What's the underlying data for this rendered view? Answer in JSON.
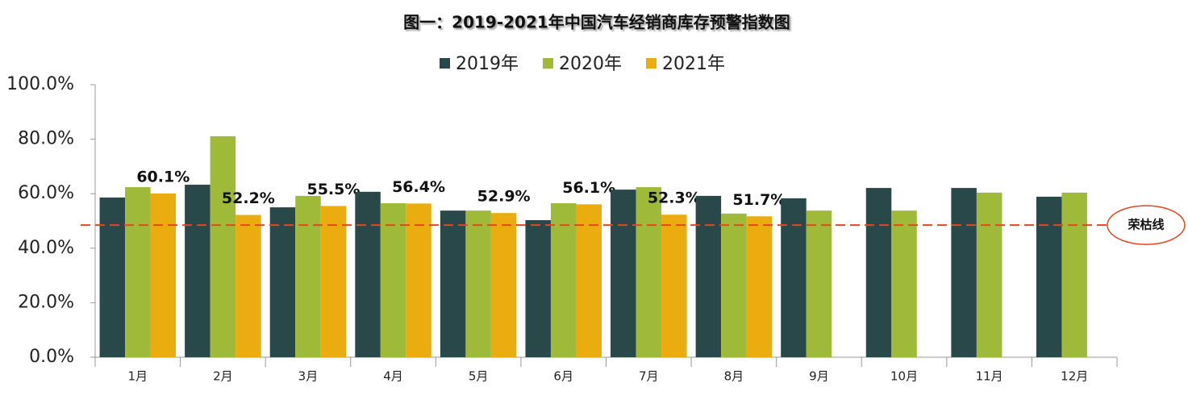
{
  "chart_data": {
    "type": "bar",
    "title": "图一：2019-2021年中国汽车经销商库存预警指数图",
    "categories": [
      "1月",
      "2月",
      "3月",
      "4月",
      "5月",
      "6月",
      "7月",
      "8月",
      "9月",
      "10月",
      "11月",
      "12月"
    ],
    "series": [
      {
        "name": "2019年",
        "color": "#29484a",
        "values": [
          58.6,
          63.3,
          55.0,
          60.7,
          53.8,
          50.3,
          61.5,
          59.2,
          58.3,
          62.1,
          62.1,
          58.9
        ]
      },
      {
        "name": "2020年",
        "color": "#9fba38",
        "values": [
          62.4,
          81.1,
          59.2,
          56.5,
          53.8,
          56.5,
          62.4,
          52.7,
          53.8,
          53.8,
          60.4,
          60.4
        ]
      },
      {
        "name": "2021年",
        "color": "#ebac0f",
        "values": [
          60.1,
          52.2,
          55.5,
          56.4,
          52.9,
          56.1,
          52.3,
          51.7,
          null,
          null,
          null,
          null
        ],
        "value_labels": [
          "60.1%",
          "52.2%",
          "55.5%",
          "56.4%",
          "52.9%",
          "56.1%",
          "52.3%",
          "51.7%",
          null,
          null,
          null,
          null
        ]
      }
    ],
    "ylim": [
      0,
      100
    ],
    "yticks": [
      {
        "value": 0,
        "label": "0.0%"
      },
      {
        "value": 20,
        "label": "20.0%"
      },
      {
        "value": 40,
        "label": "40.0%"
      },
      {
        "value": 60,
        "label": "60.0%"
      },
      {
        "value": 80,
        "label": "80.0%"
      },
      {
        "value": 100,
        "label": "100.0%"
      }
    ],
    "reference_line": {
      "value": 48.5,
      "label": "荣枯线",
      "color": "#e8451e"
    },
    "legend": "top"
  }
}
